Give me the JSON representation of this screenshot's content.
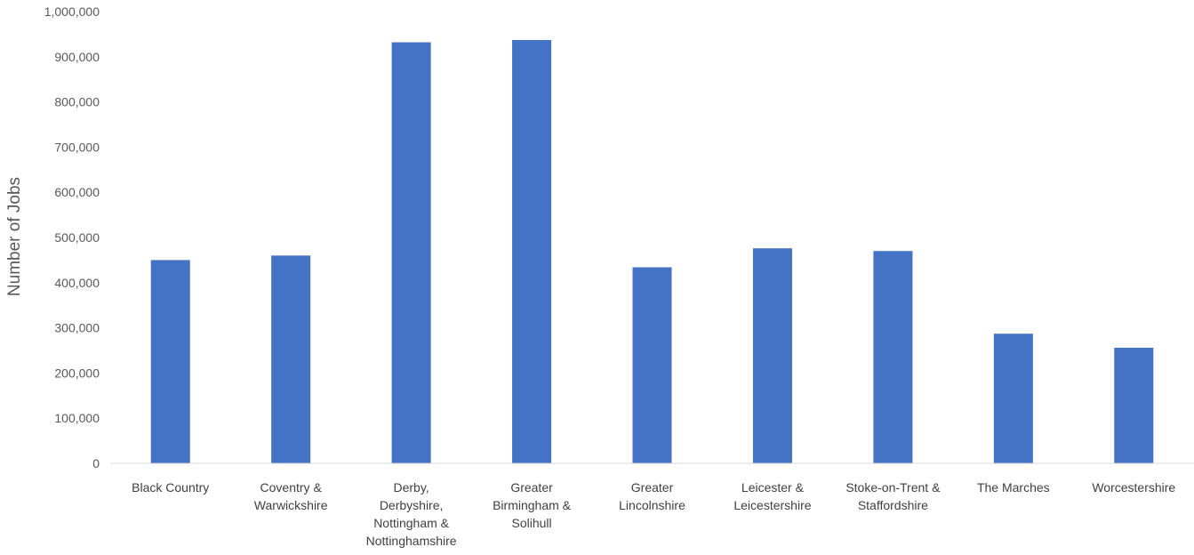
{
  "chart_data": {
    "type": "bar",
    "title": "",
    "xlabel": "",
    "ylabel": "Number of Jobs",
    "ylim": [
      0,
      1000000
    ],
    "y_ticks": [
      0,
      100000,
      200000,
      300000,
      400000,
      500000,
      600000,
      700000,
      800000,
      900000,
      1000000
    ],
    "y_tick_labels": [
      "0",
      "100,000",
      "200,000",
      "300,000",
      "400,000",
      "500,000",
      "600,000",
      "700,000",
      "800,000",
      "900,000",
      "1,000,000"
    ],
    "grid": false,
    "legend": "none",
    "bar_color": "#4472C4",
    "categories": [
      [
        "Black Country"
      ],
      [
        "Coventry &",
        "Warwickshire"
      ],
      [
        "Derby,",
        "Derbyshire,",
        "Nottingham &",
        "Nottinghamshire"
      ],
      [
        "Greater",
        "Birmingham &",
        "Solihull"
      ],
      [
        "Greater",
        "Lincolnshire"
      ],
      [
        "Leicester &",
        "Leicestershire"
      ],
      [
        "Stoke-on-Trent &",
        "Staffordshire"
      ],
      [
        "The Marches"
      ],
      [
        "Worcestershire"
      ]
    ],
    "values": [
      450000,
      460000,
      932000,
      937000,
      434000,
      476000,
      470000,
      287000,
      256000
    ]
  }
}
